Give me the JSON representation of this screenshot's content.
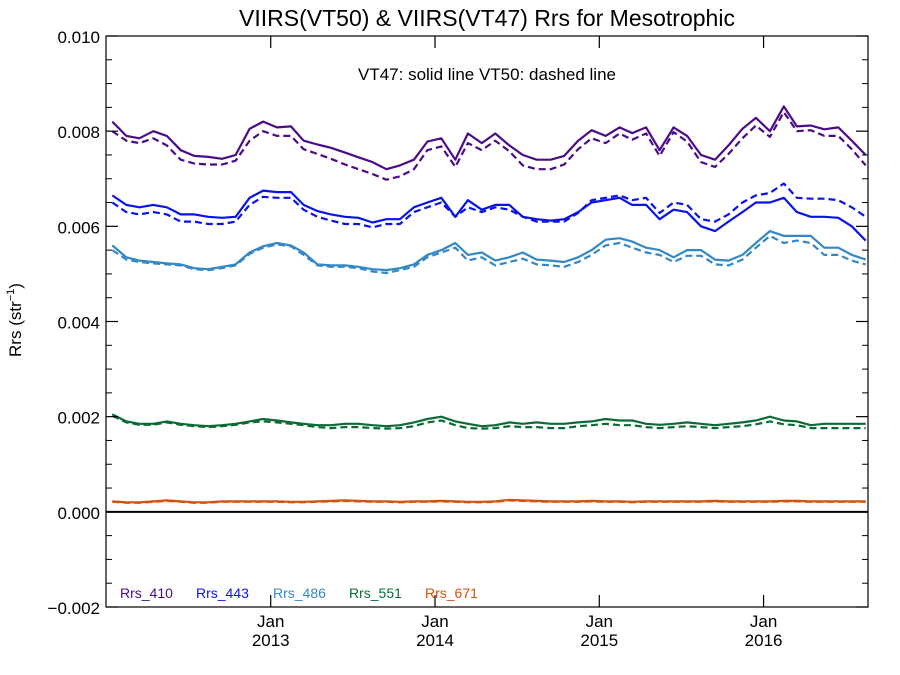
{
  "chart_data": {
    "type": "line",
    "title": "VIIRS(VT50) & VIIRS(VT47)  Rrs for Mesotrophic",
    "annotation": "VT47: solid line   VT50: dashed line",
    "ylabel": "Rrs (str",
    "ylabel_sup": "−1",
    "ylabel_close": ")",
    "ylim": [
      -0.002,
      0.01
    ],
    "yticks": [
      "0.010",
      "0.008",
      "0.006",
      "0.004",
      "0.002",
      "0.000",
      "−0.002"
    ],
    "ytick_values": [
      0.01,
      0.008,
      0.006,
      0.004,
      0.002,
      0.0,
      -0.002
    ],
    "xlim": [
      "2012-01-01",
      "2016-08-20"
    ],
    "xticks": [
      {
        "date": "2013-01-01",
        "line1": "Jan",
        "line2": "2013"
      },
      {
        "date": "2014-01-01",
        "line1": "Jan",
        "line2": "2014"
      },
      {
        "date": "2015-01-01",
        "line1": "Jan",
        "line2": "2015"
      },
      {
        "date": "2016-01-01",
        "line1": "Jan",
        "line2": "2016"
      }
    ],
    "zero_line": 0.0,
    "x": [
      "2012-01",
      "2012-02",
      "2012-03",
      "2012-04",
      "2012-05",
      "2012-06",
      "2012-07",
      "2012-08",
      "2012-09",
      "2012-10",
      "2012-11",
      "2012-12",
      "2013-01",
      "2013-02",
      "2013-03",
      "2013-04",
      "2013-05",
      "2013-06",
      "2013-07",
      "2013-08",
      "2013-09",
      "2013-10",
      "2013-11",
      "2013-12",
      "2014-01",
      "2014-02",
      "2014-03",
      "2014-04",
      "2014-05",
      "2014-06",
      "2014-07",
      "2014-08",
      "2014-09",
      "2014-10",
      "2014-11",
      "2014-12",
      "2015-01",
      "2015-02",
      "2015-03",
      "2015-04",
      "2015-05",
      "2015-06",
      "2015-07",
      "2015-08",
      "2015-09",
      "2015-10",
      "2015-11",
      "2015-12",
      "2016-01",
      "2016-02",
      "2016-03",
      "2016-04",
      "2016-05",
      "2016-06",
      "2016-07",
      "2016-08"
    ],
    "series": [
      {
        "name": "Rrs_410",
        "variant": "VT47",
        "style": "solid",
        "color": "#4B0C87",
        "values": [
          0.0082,
          0.0079,
          0.00785,
          0.008,
          0.0079,
          0.0076,
          0.00748,
          0.00746,
          0.00742,
          0.0075,
          0.00805,
          0.0082,
          0.00808,
          0.0081,
          0.0078,
          0.00772,
          0.00765,
          0.00755,
          0.00745,
          0.00735,
          0.0072,
          0.00728,
          0.0074,
          0.00778,
          0.00785,
          0.0074,
          0.00795,
          0.00775,
          0.00795,
          0.0077,
          0.0075,
          0.0074,
          0.0074,
          0.00748,
          0.0078,
          0.00802,
          0.0079,
          0.00808,
          0.00796,
          0.00808,
          0.0076,
          0.00808,
          0.0079,
          0.0075,
          0.0074,
          0.0077,
          0.00805,
          0.00828,
          0.008,
          0.00852,
          0.0081,
          0.00812,
          0.00804,
          0.00808,
          0.0078,
          0.0075
        ]
      },
      {
        "name": "Rrs_410",
        "variant": "VT50",
        "style": "dashed",
        "color": "#4B0C87",
        "values": [
          0.008,
          0.0078,
          0.00775,
          0.00785,
          0.0077,
          0.0074,
          0.00732,
          0.0073,
          0.0073,
          0.00738,
          0.0078,
          0.008,
          0.0079,
          0.0079,
          0.00762,
          0.00752,
          0.00742,
          0.0073,
          0.0072,
          0.0071,
          0.00698,
          0.00705,
          0.0072,
          0.0076,
          0.00768,
          0.00725,
          0.00775,
          0.0076,
          0.0078,
          0.00758,
          0.00728,
          0.0072,
          0.0072,
          0.0073,
          0.00762,
          0.00785,
          0.00775,
          0.00795,
          0.00782,
          0.00795,
          0.00748,
          0.00798,
          0.00778,
          0.00735,
          0.00725,
          0.00752,
          0.00785,
          0.00812,
          0.00788,
          0.0084,
          0.008,
          0.00802,
          0.0079,
          0.0079,
          0.00762,
          0.00728
        ]
      },
      {
        "name": "Rrs_443",
        "variant": "VT47",
        "style": "solid",
        "color": "#0A13E6",
        "values": [
          0.00665,
          0.00645,
          0.0064,
          0.00645,
          0.0064,
          0.00625,
          0.00625,
          0.0062,
          0.00618,
          0.0062,
          0.0066,
          0.00675,
          0.00672,
          0.00672,
          0.00645,
          0.00632,
          0.00625,
          0.0062,
          0.00618,
          0.00608,
          0.00615,
          0.00615,
          0.0064,
          0.0065,
          0.0066,
          0.0062,
          0.00655,
          0.00635,
          0.00645,
          0.00645,
          0.0062,
          0.00615,
          0.00612,
          0.00615,
          0.0063,
          0.0065,
          0.00655,
          0.0066,
          0.00645,
          0.00645,
          0.00615,
          0.00635,
          0.0063,
          0.006,
          0.0059,
          0.0061,
          0.0063,
          0.0065,
          0.0065,
          0.0066,
          0.0063,
          0.0062,
          0.0062,
          0.00618,
          0.006,
          0.0057
        ]
      },
      {
        "name": "Rrs_443",
        "variant": "VT50",
        "style": "dashed",
        "color": "#0A13E6",
        "values": [
          0.0065,
          0.0063,
          0.00625,
          0.0063,
          0.00625,
          0.0061,
          0.0061,
          0.00605,
          0.00605,
          0.0061,
          0.00645,
          0.00662,
          0.0066,
          0.0066,
          0.00635,
          0.0062,
          0.00612,
          0.00605,
          0.00605,
          0.00598,
          0.00605,
          0.00605,
          0.0063,
          0.0064,
          0.0065,
          0.0062,
          0.0064,
          0.0063,
          0.0064,
          0.00635,
          0.0062,
          0.0061,
          0.0061,
          0.0061,
          0.00628,
          0.00655,
          0.0066,
          0.00665,
          0.00655,
          0.0066,
          0.00628,
          0.0065,
          0.00645,
          0.00615,
          0.0061,
          0.00625,
          0.0065,
          0.00665,
          0.0067,
          0.0069,
          0.0066,
          0.00658,
          0.00658,
          0.00655,
          0.0064,
          0.0062
        ]
      },
      {
        "name": "Rrs_486",
        "variant": "VT47",
        "style": "solid",
        "color": "#3488C5",
        "values": [
          0.0056,
          0.00535,
          0.00528,
          0.00525,
          0.00522,
          0.0052,
          0.00512,
          0.0051,
          0.00515,
          0.0052,
          0.00545,
          0.00558,
          0.00565,
          0.0056,
          0.00545,
          0.0052,
          0.00518,
          0.00518,
          0.00515,
          0.0051,
          0.00508,
          0.00512,
          0.0052,
          0.0054,
          0.0055,
          0.00565,
          0.0054,
          0.00545,
          0.00528,
          0.00535,
          0.00545,
          0.0053,
          0.00528,
          0.00525,
          0.00535,
          0.0055,
          0.00572,
          0.00575,
          0.00568,
          0.00555,
          0.0055,
          0.00535,
          0.0055,
          0.0055,
          0.0053,
          0.00528,
          0.0054,
          0.00565,
          0.0059,
          0.0058,
          0.0058,
          0.0058,
          0.00555,
          0.00555,
          0.0054,
          0.0053
        ]
      },
      {
        "name": "Rrs_486",
        "variant": "VT50",
        "style": "dashed",
        "color": "#3488C5",
        "values": [
          0.0055,
          0.0053,
          0.00525,
          0.00522,
          0.0052,
          0.00518,
          0.0051,
          0.00508,
          0.00512,
          0.00518,
          0.00542,
          0.00555,
          0.00562,
          0.00558,
          0.0054,
          0.00518,
          0.00515,
          0.00515,
          0.00512,
          0.00505,
          0.00502,
          0.00508,
          0.00515,
          0.00535,
          0.00545,
          0.00555,
          0.00528,
          0.00535,
          0.00518,
          0.00525,
          0.00532,
          0.0052,
          0.00518,
          0.00515,
          0.00525,
          0.0054,
          0.0056,
          0.00565,
          0.00555,
          0.00545,
          0.0054,
          0.00525,
          0.00538,
          0.00538,
          0.0052,
          0.00518,
          0.0053,
          0.00555,
          0.0058,
          0.00565,
          0.0057,
          0.00565,
          0.0054,
          0.0054,
          0.00528,
          0.0052
        ]
      },
      {
        "name": "Rrs_551",
        "variant": "VT47",
        "style": "solid",
        "color": "#0B6B35",
        "values": [
          0.00205,
          0.0019,
          0.00185,
          0.00185,
          0.0019,
          0.00185,
          0.00182,
          0.0018,
          0.00182,
          0.00185,
          0.0019,
          0.00195,
          0.00192,
          0.00188,
          0.00185,
          0.00182,
          0.00182,
          0.00185,
          0.00185,
          0.00182,
          0.0018,
          0.00182,
          0.00188,
          0.00195,
          0.002,
          0.0019,
          0.00185,
          0.0018,
          0.00182,
          0.00188,
          0.00185,
          0.00188,
          0.00185,
          0.00185,
          0.00188,
          0.0019,
          0.00195,
          0.00192,
          0.00192,
          0.00185,
          0.00183,
          0.00185,
          0.00188,
          0.00185,
          0.00182,
          0.00185,
          0.00188,
          0.00192,
          0.002,
          0.00192,
          0.0019,
          0.00182,
          0.00185,
          0.00185,
          0.00185,
          0.00185
        ]
      },
      {
        "name": "Rrs_551",
        "variant": "VT50",
        "style": "dashed",
        "color": "#0B6B35",
        "values": [
          0.00202,
          0.00188,
          0.00183,
          0.00183,
          0.00188,
          0.00183,
          0.0018,
          0.00178,
          0.0018,
          0.00183,
          0.00188,
          0.0019,
          0.00188,
          0.00185,
          0.00182,
          0.00178,
          0.00176,
          0.00178,
          0.00178,
          0.00176,
          0.00175,
          0.00176,
          0.0018,
          0.00188,
          0.00192,
          0.00182,
          0.00176,
          0.00175,
          0.00176,
          0.0018,
          0.00178,
          0.00178,
          0.00176,
          0.00176,
          0.0018,
          0.00182,
          0.00185,
          0.00182,
          0.00182,
          0.00178,
          0.00176,
          0.00178,
          0.0018,
          0.00178,
          0.00176,
          0.00178,
          0.0018,
          0.00184,
          0.0019,
          0.00184,
          0.00182,
          0.00176,
          0.00176,
          0.00176,
          0.00176,
          0.00176
        ]
      },
      {
        "name": "Rrs_671",
        "variant": "VT47",
        "style": "solid",
        "color": "#D5520F",
        "values": [
          0.00022,
          0.0002,
          0.0002,
          0.00022,
          0.00024,
          0.00022,
          0.0002,
          0.0002,
          0.00022,
          0.00022,
          0.00022,
          0.00022,
          0.00022,
          0.00021,
          0.00021,
          0.00022,
          0.00023,
          0.00024,
          0.00023,
          0.00022,
          0.00022,
          0.00021,
          0.00022,
          0.00022,
          0.00023,
          0.00022,
          0.00021,
          0.00021,
          0.00022,
          0.00025,
          0.00024,
          0.00023,
          0.00022,
          0.00022,
          0.00022,
          0.00023,
          0.00022,
          0.00022,
          0.00021,
          0.00022,
          0.00022,
          0.00022,
          0.00022,
          0.00022,
          0.00023,
          0.00022,
          0.00022,
          0.00022,
          0.00022,
          0.00023,
          0.00023,
          0.00022,
          0.00022,
          0.00022,
          0.00022,
          0.00022
        ]
      },
      {
        "name": "Rrs_671",
        "variant": "VT50",
        "style": "dashed",
        "color": "#D5520F",
        "values": [
          0.00021,
          0.00019,
          0.00019,
          0.00021,
          0.00023,
          0.00021,
          0.00019,
          0.00019,
          0.00021,
          0.00021,
          0.00021,
          0.00021,
          0.00021,
          0.0002,
          0.0002,
          0.00021,
          0.00022,
          0.00023,
          0.00022,
          0.00021,
          0.00021,
          0.0002,
          0.00021,
          0.00021,
          0.00022,
          0.00021,
          0.0002,
          0.0002,
          0.00021,
          0.00024,
          0.00023,
          0.00022,
          0.00021,
          0.00021,
          0.00021,
          0.00022,
          0.00021,
          0.00021,
          0.0002,
          0.00021,
          0.00021,
          0.00021,
          0.00021,
          0.00021,
          0.00022,
          0.00021,
          0.00021,
          0.00021,
          0.00021,
          0.00022,
          0.00022,
          0.00021,
          0.00021,
          0.00021,
          0.00021,
          0.00021
        ]
      }
    ],
    "legend": [
      {
        "label": "Rrs_410",
        "color": "#4B0C87"
      },
      {
        "label": "Rrs_443",
        "color": "#0A13E6"
      },
      {
        "label": "Rrs_486",
        "color": "#3488C5"
      },
      {
        "label": "Rrs_551",
        "color": "#0B6B35"
      },
      {
        "label": "Rrs_671",
        "color": "#D5520F"
      }
    ],
    "legend_position": "bottom-left"
  }
}
